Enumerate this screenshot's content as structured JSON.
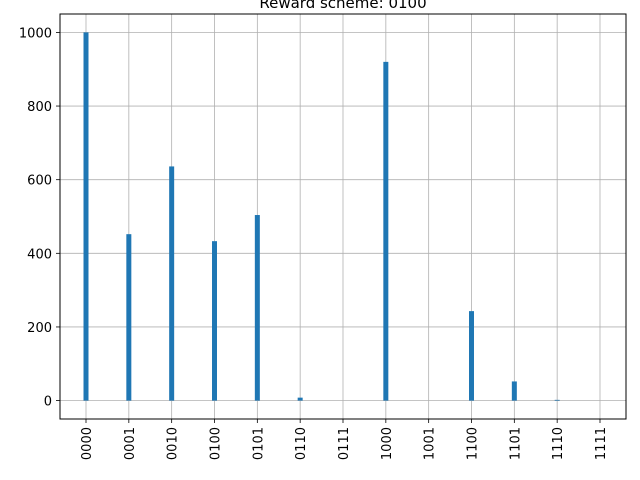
{
  "chart_data": {
    "type": "bar",
    "title": "Reward scheme: 0100",
    "xlabel": "",
    "ylabel": "",
    "categories": [
      "0000",
      "0001",
      "0010",
      "0100",
      "0101",
      "0110",
      "0111",
      "1000",
      "1001",
      "1100",
      "1101",
      "1110",
      "1111"
    ],
    "values": [
      1000,
      452,
      636,
      433,
      504,
      8,
      0,
      920,
      0,
      243,
      52,
      2,
      0
    ],
    "ylim": [
      -50,
      1050
    ],
    "yticks": [
      0,
      200,
      400,
      600,
      800,
      1000
    ],
    "grid": true,
    "bar_color": "#1f77b4"
  }
}
